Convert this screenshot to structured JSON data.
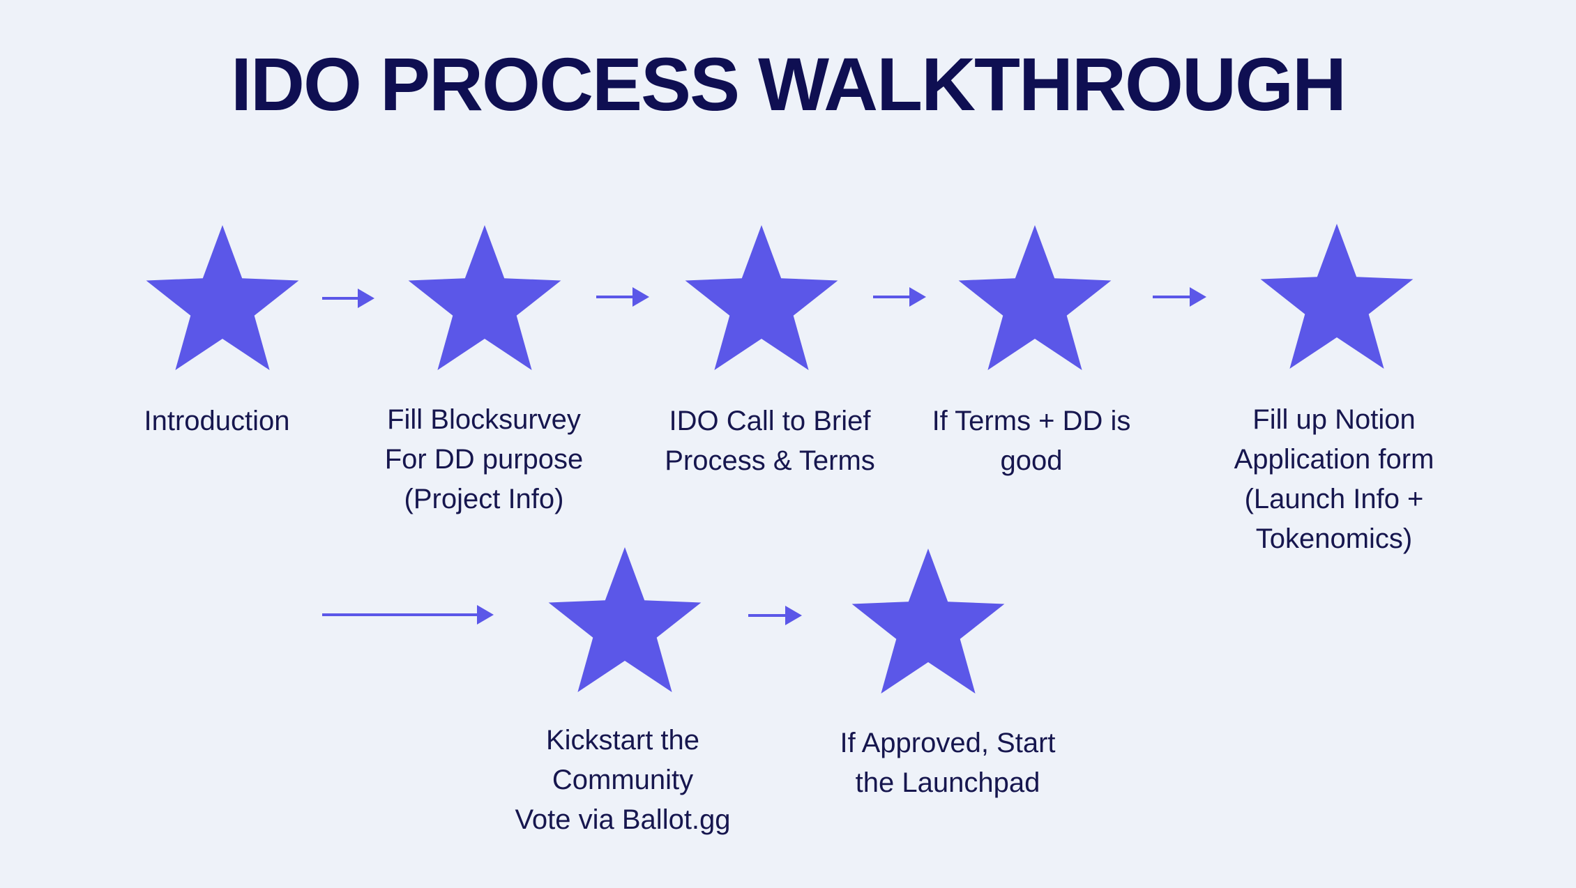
{
  "title": "IDO PROCESS WALKTHROUGH",
  "colors": {
    "background": "#eef2f9",
    "accent": "#5b57e8",
    "text": "#13134f"
  },
  "steps": [
    {
      "icon": "star-icon",
      "label": "Introduction"
    },
    {
      "icon": "star-icon",
      "label": "Fill Blocksurvey\nFor DD purpose\n(Project Info)"
    },
    {
      "icon": "star-icon",
      "label": "IDO Call to Brief\nProcess & Terms"
    },
    {
      "icon": "star-icon",
      "label": "If Terms + DD is\ngood"
    },
    {
      "icon": "star-icon",
      "label": "Fill up Notion\nApplication form\n(Launch Info +\nTokenomics)"
    },
    {
      "icon": "star-icon",
      "label": "Kickstart the\nCommunity\nVote via Ballot.gg"
    },
    {
      "icon": "star-icon",
      "label": "If Approved, Start\nthe Launchpad"
    }
  ],
  "connectors": [
    {
      "from": "Introduction",
      "to": "Fill Blocksurvey"
    },
    {
      "from": "Fill Blocksurvey",
      "to": "IDO Call to Brief"
    },
    {
      "from": "IDO Call to Brief",
      "to": "If Terms + DD is good"
    },
    {
      "from": "If Terms + DD is good",
      "to": "Fill up Notion Application form"
    },
    {
      "from": "Fill up Notion Application form",
      "to": "Kickstart the Community Vote"
    },
    {
      "from": "Kickstart the Community Vote",
      "to": "If Approved, Start the Launchpad"
    }
  ]
}
